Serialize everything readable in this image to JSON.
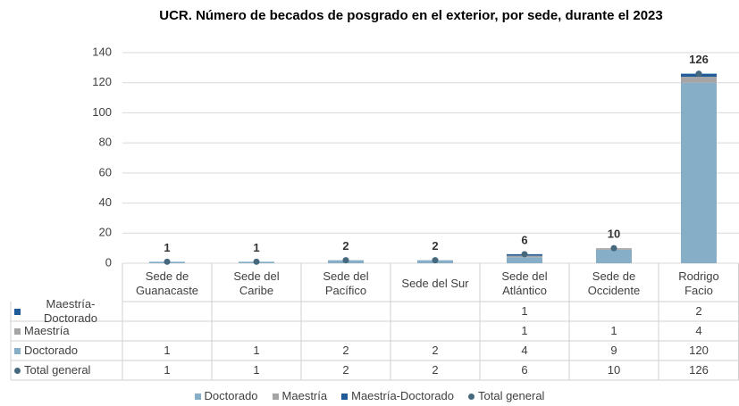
{
  "chart_data": {
    "type": "bar",
    "stacked": true,
    "title": "UCR. Número de becados de posgrado en el exterior, por sede, durante el 2023",
    "categories": [
      "Sede de Guanacaste",
      "Sede del Caribe",
      "Sede del Pacífico",
      "Sede del Sur",
      "Sede del Atlántico",
      "Sede de Occidente",
      "Rodrigo Facio"
    ],
    "series": [
      {
        "name": "Doctorado",
        "color": "#86aec6",
        "values": [
          1,
          1,
          2,
          2,
          4,
          9,
          120
        ]
      },
      {
        "name": "Maestría",
        "color": "#a5a5a5",
        "values": [
          null,
          null,
          null,
          null,
          1,
          1,
          4
        ]
      },
      {
        "name": "Maestría-Doctorado",
        "color": "#1f5b99",
        "values": [
          null,
          null,
          null,
          null,
          1,
          null,
          2
        ]
      },
      {
        "name": "Total general",
        "color": "#46687e",
        "type": "scatter",
        "values": [
          1,
          1,
          2,
          2,
          6,
          10,
          126
        ]
      }
    ],
    "ylim": [
      0,
      140
    ],
    "yticks": [
      0,
      20,
      40,
      60,
      80,
      100,
      120,
      140
    ],
    "grid": true,
    "data_table": true,
    "legend": "bottom"
  }
}
